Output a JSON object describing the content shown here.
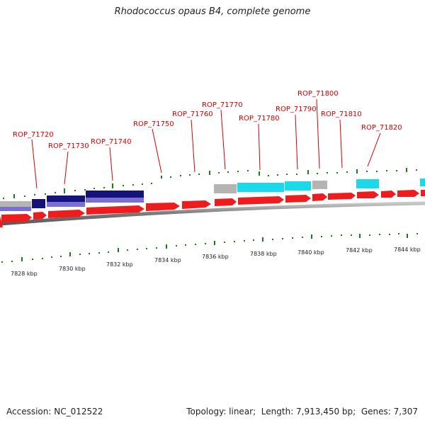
{
  "title": "Rhodococcus opaus B4, complete genome",
  "accession_label": "Accession: NC_012522",
  "topology_label": "Topology: linear;",
  "length_label": "Length: 7,913,450 bp;",
  "genes_label": "Genes: 7,307",
  "gene_labels": [
    "ROP_71720",
    "ROP_71730",
    "ROP_71740",
    "ROP_71750",
    "ROP_71760",
    "ROP_71770",
    "ROP_71780",
    "ROP_71790",
    "ROP_71800",
    "ROP_71810",
    "ROP_71820"
  ],
  "kbp_labels": [
    "7828 kbp",
    "7830 kbp",
    "7832 kbp",
    "7834 kbp",
    "7836 kbp",
    "7838 kbp",
    "7840 kbp",
    "7842 kbp",
    "7844 kbp"
  ],
  "colors": {
    "label_red": "#d40000",
    "forward_gene": "#ee1c1c",
    "navy": "#13137a",
    "lavender": "#7a6fd4",
    "cyan": "#1ad9e8",
    "gray": "#b4b4b4",
    "tick_green": "#1a7a1a",
    "backbone": "#8c8c8c"
  }
}
